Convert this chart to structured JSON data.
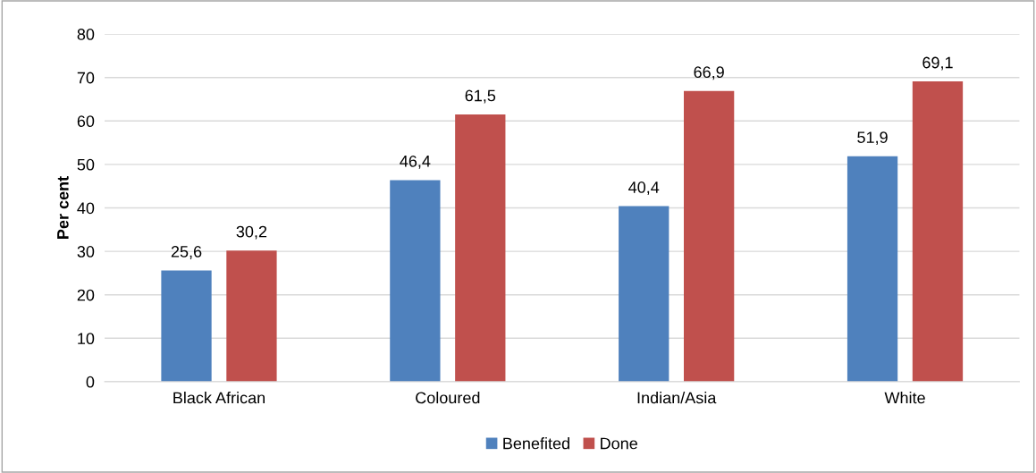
{
  "chart_data": {
    "type": "bar",
    "ylabel": "Per cent",
    "categories": [
      "Black African",
      "Coloured",
      "Indian/Asia",
      "White"
    ],
    "series": [
      {
        "name": "Benefited",
        "color": "#4f81bd",
        "values": [
          25.6,
          46.4,
          40.4,
          51.9
        ],
        "value_labels": [
          "25,6",
          "46,4",
          "40,4",
          "51,9"
        ]
      },
      {
        "name": "Done",
        "color": "#c0504d",
        "values": [
          30.2,
          61.5,
          66.9,
          69.1
        ],
        "value_labels": [
          "30,2",
          "61,5",
          "66,9",
          "69,1"
        ]
      }
    ],
    "ylim": [
      0,
      80
    ],
    "yticks": [
      0,
      10,
      20,
      30,
      40,
      50,
      60,
      70,
      80
    ],
    "grid": "y",
    "legend": "bottom"
  }
}
